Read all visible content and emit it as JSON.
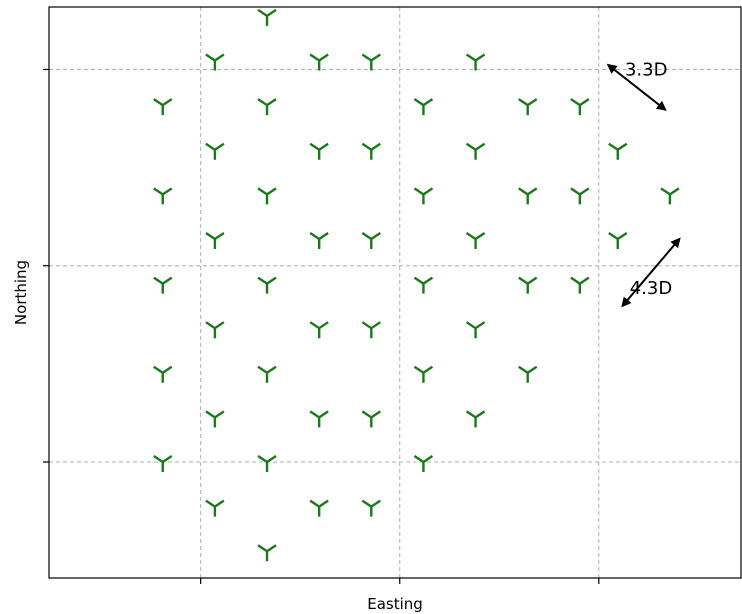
{
  "chart_data": {
    "type": "scatter",
    "title": "",
    "xlabel": "Easting",
    "ylabel": "Northing",
    "xlim": [
      -1.6,
      5.7
    ],
    "ylim": [
      -1.3,
      5.1
    ],
    "grid": true,
    "grid_style": "dashed",
    "x_ticks": [
      0,
      2.1,
      4.2
    ],
    "y_ticks": [
      0,
      2.2,
      4.4
    ],
    "show_tick_labels": false,
    "marker_color": "#1a7a1a",
    "marker_shape": "tri-arm",
    "turbines": [
      {
        "x": -0.4,
        "y": 0.0
      },
      {
        "x": -0.4,
        "y": 1.0
      },
      {
        "x": -0.4,
        "y": 2.0
      },
      {
        "x": -0.4,
        "y": 3.0
      },
      {
        "x": -0.4,
        "y": 4.0
      },
      {
        "x": 0.15,
        "y": -0.5
      },
      {
        "x": 0.15,
        "y": 0.5
      },
      {
        "x": 0.15,
        "y": 1.5
      },
      {
        "x": 0.15,
        "y": 2.5
      },
      {
        "x": 0.15,
        "y": 3.5
      },
      {
        "x": 0.15,
        "y": 4.5
      },
      {
        "x": 0.7,
        "y": -1.0
      },
      {
        "x": 0.7,
        "y": 0.0
      },
      {
        "x": 0.7,
        "y": 1.0
      },
      {
        "x": 0.7,
        "y": 2.0
      },
      {
        "x": 0.7,
        "y": 3.0
      },
      {
        "x": 0.7,
        "y": 4.0
      },
      {
        "x": 0.7,
        "y": 5.0
      },
      {
        "x": 1.25,
        "y": -0.5
      },
      {
        "x": 1.25,
        "y": 0.5
      },
      {
        "x": 1.25,
        "y": 1.5
      },
      {
        "x": 1.25,
        "y": 2.5
      },
      {
        "x": 1.25,
        "y": 3.5
      },
      {
        "x": 1.25,
        "y": 4.5
      },
      {
        "x": 1.8,
        "y": -0.5
      },
      {
        "x": 1.8,
        "y": 0.5
      },
      {
        "x": 1.8,
        "y": 1.5
      },
      {
        "x": 1.8,
        "y": 2.5
      },
      {
        "x": 1.8,
        "y": 3.5
      },
      {
        "x": 1.8,
        "y": 4.5
      },
      {
        "x": 2.35,
        "y": 0.0
      },
      {
        "x": 2.35,
        "y": 1.0
      },
      {
        "x": 2.35,
        "y": 2.0
      },
      {
        "x": 2.35,
        "y": 3.0
      },
      {
        "x": 2.35,
        "y": 4.0
      },
      {
        "x": 2.9,
        "y": 0.5
      },
      {
        "x": 2.9,
        "y": 1.5
      },
      {
        "x": 2.9,
        "y": 2.5
      },
      {
        "x": 2.9,
        "y": 3.5
      },
      {
        "x": 2.9,
        "y": 4.5
      },
      {
        "x": 3.45,
        "y": 1.0
      },
      {
        "x": 3.45,
        "y": 2.0
      },
      {
        "x": 3.45,
        "y": 3.0
      },
      {
        "x": 3.45,
        "y": 4.0
      },
      {
        "x": 4.0,
        "y": 2.0
      },
      {
        "x": 4.0,
        "y": 3.0
      },
      {
        "x": 4.0,
        "y": 4.0
      },
      {
        "x": 4.4,
        "y": 3.5
      },
      {
        "x": 4.4,
        "y": 2.5
      },
      {
        "x": 4.95,
        "y": 3.0
      }
    ],
    "annotations": [
      {
        "label": "3.3D",
        "text_x": 4.7,
        "text_y": 4.4,
        "arrow_from": [
          4.3,
          4.45
        ],
        "arrow_to": [
          4.9,
          3.95
        ]
      },
      {
        "label": "4.3D",
        "text_x": 4.75,
        "text_y": 1.95,
        "arrow_from": [
          4.45,
          1.75
        ],
        "arrow_to": [
          5.05,
          2.5
        ]
      }
    ]
  }
}
